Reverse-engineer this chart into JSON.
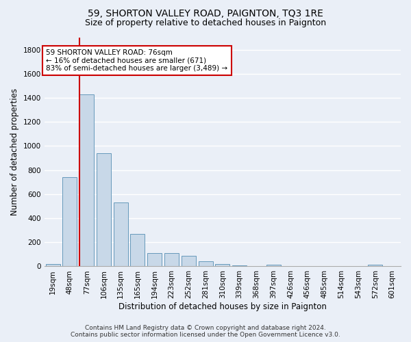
{
  "title": "59, SHORTON VALLEY ROAD, PAIGNTON, TQ3 1RE",
  "subtitle": "Size of property relative to detached houses in Paignton",
  "xlabel": "Distribution of detached houses by size in Paignton",
  "ylabel": "Number of detached properties",
  "footnote1": "Contains HM Land Registry data © Crown copyright and database right 2024.",
  "footnote2": "Contains public sector information licensed under the Open Government Licence v3.0.",
  "bar_labels": [
    "19sqm",
    "48sqm",
    "77sqm",
    "106sqm",
    "135sqm",
    "165sqm",
    "194sqm",
    "223sqm",
    "252sqm",
    "281sqm",
    "310sqm",
    "339sqm",
    "368sqm",
    "397sqm",
    "426sqm",
    "456sqm",
    "485sqm",
    "514sqm",
    "543sqm",
    "572sqm",
    "601sqm"
  ],
  "bar_values": [
    20,
    740,
    1430,
    940,
    530,
    270,
    110,
    110,
    90,
    40,
    20,
    10,
    5,
    15,
    5,
    3,
    3,
    3,
    3,
    15,
    3
  ],
  "bar_color": "#c8d8e8",
  "bar_edge_color": "#6699bb",
  "vline_x_index": 2,
  "vline_color": "#cc0000",
  "annotation_text": "59 SHORTON VALLEY ROAD: 76sqm\n← 16% of detached houses are smaller (671)\n83% of semi-detached houses are larger (3,489) →",
  "annotation_box_color": "#ffffff",
  "annotation_box_edge_color": "#cc0000",
  "ylim": [
    0,
    1900
  ],
  "background_color": "#eaeff7",
  "plot_background_color": "#eaeff7",
  "grid_color": "#ffffff",
  "title_fontsize": 10,
  "subtitle_fontsize": 9,
  "axis_label_fontsize": 8.5,
  "tick_fontsize": 7.5,
  "annotation_fontsize": 7.5,
  "footnote_fontsize": 6.5
}
